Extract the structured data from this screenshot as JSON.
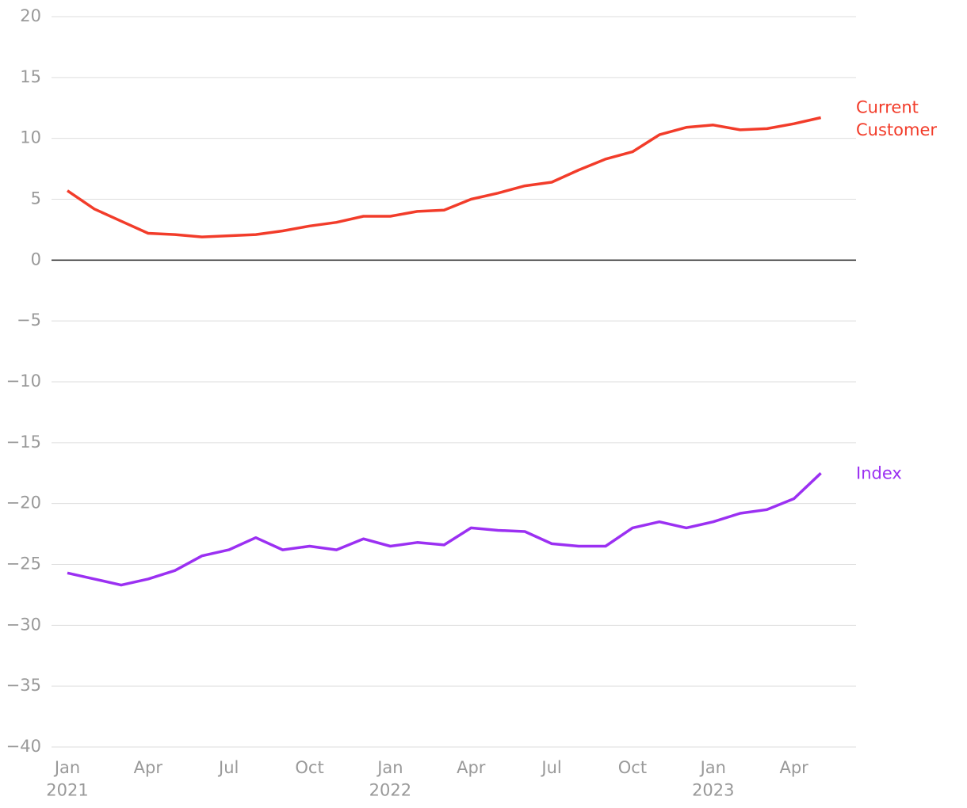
{
  "chart_data": {
    "type": "line",
    "x": [
      "2021-01",
      "2021-02",
      "2021-03",
      "2021-04",
      "2021-05",
      "2021-06",
      "2021-07",
      "2021-08",
      "2021-09",
      "2021-10",
      "2021-11",
      "2021-12",
      "2022-01",
      "2022-02",
      "2022-03",
      "2022-04",
      "2022-05",
      "2022-06",
      "2022-07",
      "2022-08",
      "2022-09",
      "2022-10",
      "2022-11",
      "2022-12",
      "2023-01",
      "2023-02",
      "2023-03",
      "2023-04",
      "2023-05"
    ],
    "series": [
      {
        "name": "Current Customer",
        "color": "#f23c2a",
        "values": [
          5.7,
          4.2,
          3.2,
          2.2,
          2.1,
          1.9,
          2.0,
          2.1,
          2.4,
          2.8,
          3.1,
          3.6,
          3.6,
          4.0,
          4.1,
          5.0,
          5.5,
          6.1,
          6.4,
          7.4,
          8.3,
          8.9,
          10.3,
          10.9,
          11.1,
          10.7,
          10.8,
          11.2,
          11.7
        ]
      },
      {
        "name": "Index",
        "color": "#9b30f2",
        "values": [
          -25.7,
          -26.2,
          -26.7,
          -26.2,
          -25.5,
          -24.3,
          -23.8,
          -22.8,
          -23.8,
          -23.5,
          -23.8,
          -22.9,
          -23.5,
          -23.2,
          -23.4,
          -22.0,
          -22.2,
          -22.3,
          -23.3,
          -23.5,
          -23.5,
          -22.0,
          -21.5,
          -22.0,
          -21.5,
          -20.8,
          -20.5,
          -19.6,
          -17.5
        ]
      }
    ],
    "xticks": [
      {
        "value": "2021-01",
        "label": "Jan 2021"
      },
      {
        "value": "2021-04",
        "label": "Apr"
      },
      {
        "value": "2021-07",
        "label": "Jul"
      },
      {
        "value": "2021-10",
        "label": "Oct"
      },
      {
        "value": "2022-01",
        "label": "Jan 2022"
      },
      {
        "value": "2022-04",
        "label": "Apr"
      },
      {
        "value": "2022-07",
        "label": "Jul"
      },
      {
        "value": "2022-10",
        "label": "Oct"
      },
      {
        "value": "2023-01",
        "label": "Jan 2023"
      },
      {
        "value": "2023-04",
        "label": "Apr"
      }
    ],
    "ylim": [
      -40,
      20
    ],
    "yticks": [
      20,
      15,
      10,
      5,
      0,
      {
        "value": -5,
        "label": "−5"
      },
      {
        "value": -10,
        "label": "−10"
      },
      {
        "value": -15,
        "label": "−15"
      },
      {
        "value": -20,
        "label": "−20"
      },
      {
        "value": -25,
        "label": "−25"
      },
      {
        "value": -30,
        "label": "−30"
      },
      {
        "value": -35,
        "label": "−35"
      },
      {
        "value": -40,
        "label": "−40"
      }
    ],
    "grid": true
  }
}
